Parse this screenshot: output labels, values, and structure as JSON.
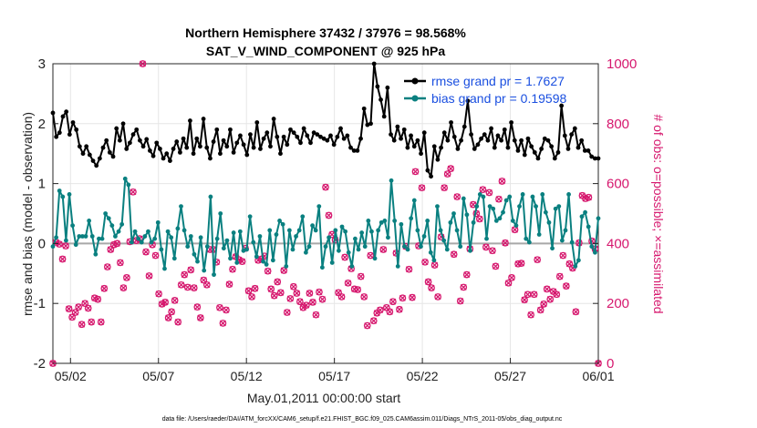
{
  "chart_data": {
    "type": "line",
    "title": "Northern Hemisphere 37432 / 37976 = 98.568%",
    "subtitle": "SAT_V_WIND_COMPONENT @ 925 hPa",
    "xlabel": "May.01,2011 00:00:00 start",
    "ylabel": "rmse and bias (model - observation)",
    "ylabel_right": "# of obs: o=possible; ×=assimilated",
    "ylim": [
      -2,
      3
    ],
    "ylim_right": [
      0,
      1000
    ],
    "yticks": [
      "-2",
      "-1",
      "0",
      "1",
      "2",
      "3"
    ],
    "yticks_right": [
      "0",
      "200",
      "400",
      "600",
      "800",
      "1000"
    ],
    "xticks": [
      "05/02",
      "05/07",
      "05/12",
      "05/17",
      "05/22",
      "05/27",
      "06/01"
    ],
    "x_start_day": 0.5,
    "x_end_day": 31.5,
    "x_tick_days": [
      1.5,
      6.5,
      11.5,
      16.5,
      21.5,
      26.5,
      31.5
    ],
    "footnote": "data file: /Users/raeder/DAI/ATM_forcXX/CAM6_setup/f.e21.FHIST_BGC.f09_025.CAM6assim.011/Diags_NTrS_2011-05/obs_diag_output.nc",
    "legend": {
      "placement": "top-right",
      "entries": [
        "rmse grand pr = 1.7627",
        "bias grand pr = 0.19598"
      ]
    },
    "colors": {
      "rmse": "#000000",
      "bias": "#0a8080",
      "obs": "#d6186e",
      "zero_line": "#a8a8a8",
      "legend_text": "#1a4fe0"
    },
    "series": [
      {
        "name": "rmse",
        "values": [
          2.18,
          1.78,
          1.85,
          2.12,
          2.2,
          1.82,
          2.02,
          1.9,
          1.62,
          1.5,
          1.62,
          1.48,
          1.38,
          1.3,
          1.42,
          1.6,
          1.72,
          1.52,
          1.45,
          1.92,
          1.72,
          2,
          1.58,
          1.68,
          1.82,
          1.9,
          1.72,
          1.62,
          1.74,
          1.55,
          1.46,
          1.68,
          1.58,
          1.42,
          1.5,
          1.38,
          1.58,
          1.7,
          1.52,
          1.75,
          1.6,
          2.05,
          1.5,
          1.75,
          1.62,
          2.08,
          1.6,
          1.42,
          1.7,
          1.9,
          1.5,
          1.72,
          1.62,
          1.9,
          1.52,
          1.68,
          1.8,
          1.65,
          1.48,
          1.82,
          1.6,
          2.02,
          1.58,
          1.75,
          1.85,
          1.62,
          2.08,
          1.78,
          1.5,
          1.78,
          1.65,
          1.9,
          1.85,
          1.78,
          1.68,
          1.92,
          1.8,
          1.68,
          1.85,
          1.82,
          1.78,
          1.75,
          1.72,
          1.8,
          1.65,
          1.78,
          1.92,
          1.75,
          1.8,
          1.6,
          1.55,
          1.55,
          1.75,
          2.25,
          1.98,
          2,
          3,
          2.62,
          2.4,
          2.12,
          2.6,
          1.82,
          1.72,
          1.95,
          1.75,
          1.9,
          1.6,
          1.8,
          1.62,
          1.72,
          1.5,
          1.85,
          1.22,
          1.12,
          1.62,
          1.4,
          1.6,
          1.85,
          1.72,
          2.02,
          1.78,
          1.58,
          1.72,
          1.95,
          2.38,
          1.82,
          1.58,
          1.65,
          1.75,
          1.82,
          1.72,
          1.92,
          1.6,
          1.8,
          1.72,
          1.9,
          1.6,
          2.02,
          1.72,
          1.55,
          1.72,
          1.48,
          1.75,
          1.62,
          1.52,
          1.42,
          1.58,
          1.75,
          1.72,
          1.62,
          1.42,
          1.52,
          2.3,
          1.8,
          1.58,
          1.82,
          1.92,
          1.6,
          1.72,
          1.55,
          1.55,
          1.45,
          1.42,
          1.42
        ]
      },
      {
        "name": "bias",
        "values": [
          -0.05,
          0.1,
          0.88,
          0.78,
          0.05,
          0.82,
          0.3,
          -0.02,
          0.12,
          0.12,
          0.12,
          0.38,
          0.12,
          -0.18,
          0.08,
          0.08,
          0.5,
          0.42,
          0.3,
          0.12,
          0.2,
          0.32,
          1.08,
          0.98,
          0.02,
          0.2,
          0.08,
          0.02,
          0.12,
          0.2,
          0.02,
          0.08,
          0.35,
          -0.1,
          -0.42,
          0.2,
          0.1,
          -0.25,
          0.25,
          0.62,
          0.22,
          -0.05,
          0.12,
          -0.18,
          -0.3,
          0.1,
          -0.45,
          -0.05,
          0.78,
          -0.52,
          0.08,
          0.5,
          -0.08,
          0.05,
          -0.25,
          0.18,
          -0.32,
          0.2,
          -0.12,
          -0.1,
          0.45,
          0.02,
          -0.22,
          0.12,
          -0.3,
          -0.35,
          0.22,
          -0.28,
          0.15,
          0.38,
          0.32,
          -0.38,
          0.22,
          -0.1,
          0.12,
          0.22,
          0.45,
          -0.15,
          -0.05,
          0.3,
          0.22,
          0.62,
          -0.4,
          -0.05,
          0.1,
          -0.32,
          0.22,
          -0.12,
          0.28,
          0.2,
          -0.15,
          -0.38,
          0.08,
          -0.1,
          0.18,
          -0.05,
          0.38,
          0.2,
          -0.25,
          0.22,
          0.35,
          0.38,
          0.1,
          1.05,
          0.38,
          -0.38,
          0.32,
          -0.05,
          -0.1,
          0.42,
          0.72,
          0.22,
          -0.05,
          0.12,
          0.38,
          -0.15,
          -0.28,
          0.62,
          0.22,
          0.05,
          -0.1,
          0.35,
          0.5,
          0.22,
          -0.05,
          0.75,
          0.48,
          -0.12,
          0.35,
          0.62,
          0.82,
          0.78,
          0.08,
          0.62,
          0.58,
          0.38,
          0.42,
          0.52,
          0.72,
          0.78,
          0.38,
          0.3,
          0.62,
          0.82,
          0.08,
          0.02,
          0.78,
          0.62,
          0.15,
          0.82,
          0.52,
          0.35,
          -0.08,
          0.58,
          0.62,
          0.05,
          0.22,
          0.82,
          0.02,
          -0.38,
          -0.28,
          0.45,
          0.52,
          0.28,
          -0.05,
          -0.15,
          0.42
        ]
      },
      {
        "name": "obs_possible",
        "values": [
          0,
          404,
          398,
          348,
          392,
          182,
          154,
          170,
          188,
          130,
          200,
          184,
          138,
          218,
          214,
          138,
          250,
          322,
          380,
          396,
          400,
          336,
          252,
          286,
          406,
          572,
          410,
          416,
          1000,
          372,
          292,
          396,
          360,
          232,
          198,
          204,
          152,
          172,
          210,
          138,
          262,
          296,
          254,
          312,
          252,
          188,
          152,
          278,
          262,
          380,
          380,
          338,
          186,
          134,
          178,
          264,
          314,
          356,
          346,
          340,
          384,
          242,
          222,
          250,
          344,
          348,
          358,
          308,
          248,
          226,
          272,
          236,
          310,
          170,
          216,
          256,
          234,
          206,
          186,
          194,
          234,
          204,
          162,
          238,
          214,
          588,
          494,
          430,
          412,
          236,
          222,
          354,
          268,
          316,
          248,
          246,
          290,
          222,
          126,
          360,
          142,
          168,
          178,
          380,
          186,
          172,
          206,
          368,
          180,
          218,
          390,
          314,
          220,
          640,
          392,
          586,
          338,
          272,
          252,
          328,
          222,
          422,
          586,
          632,
          650,
          364,
          556,
          208,
          254,
          296,
          382,
          530,
          500,
          482,
          580,
          388,
          570,
          376,
          324,
          548,
          608,
          402,
          268,
          286,
          446,
          332,
          334,
          212,
          230,
          162,
          230,
          346,
          178,
          198,
          248,
          214,
          240,
          230,
          290,
          360,
          258,
          332,
          318,
          172,
          402,
          560,
          550,
          554,
          408,
          382,
          0
        ]
      },
      {
        "name": "obs_assimilated",
        "values": [
          0,
          404,
          398,
          348,
          392,
          182,
          154,
          170,
          188,
          130,
          200,
          184,
          138,
          218,
          214,
          138,
          250,
          322,
          380,
          396,
          400,
          336,
          252,
          286,
          406,
          572,
          410,
          416,
          1000,
          372,
          292,
          396,
          360,
          232,
          198,
          204,
          152,
          172,
          210,
          138,
          262,
          296,
          254,
          312,
          252,
          188,
          152,
          278,
          262,
          380,
          380,
          338,
          186,
          134,
          178,
          264,
          314,
          356,
          346,
          340,
          384,
          242,
          222,
          250,
          344,
          348,
          358,
          308,
          248,
          226,
          272,
          236,
          310,
          170,
          216,
          256,
          234,
          206,
          186,
          194,
          234,
          204,
          162,
          238,
          214,
          588,
          494,
          430,
          412,
          236,
          222,
          354,
          268,
          316,
          248,
          246,
          290,
          222,
          126,
          360,
          142,
          168,
          178,
          380,
          186,
          172,
          206,
          368,
          180,
          218,
          390,
          314,
          220,
          640,
          392,
          586,
          338,
          272,
          252,
          328,
          222,
          422,
          586,
          632,
          650,
          364,
          556,
          208,
          254,
          296,
          382,
          530,
          500,
          482,
          580,
          388,
          570,
          376,
          324,
          548,
          608,
          402,
          268,
          286,
          446,
          332,
          334,
          212,
          230,
          162,
          230,
          346,
          178,
          198,
          248,
          214,
          240,
          230,
          290,
          360,
          258,
          332,
          318,
          172,
          402,
          560,
          550,
          554,
          408,
          382,
          0
        ]
      }
    ]
  }
}
